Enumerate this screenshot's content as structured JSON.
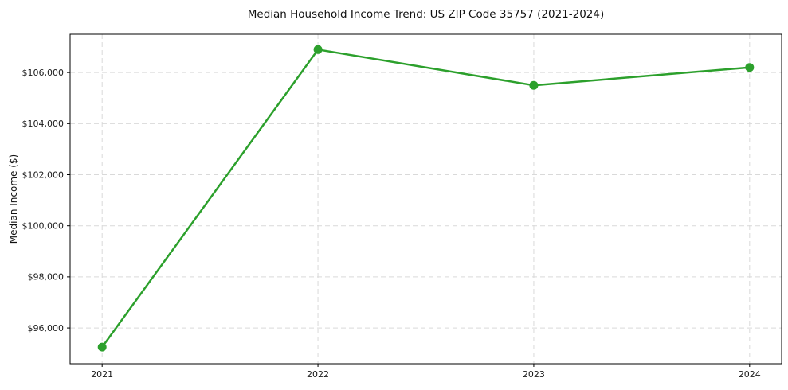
{
  "chart_data": {
    "type": "line",
    "title": "Median Household Income Trend: US ZIP Code 35757 (2021-2024)",
    "xlabel": "",
    "ylabel": "Median Income ($)",
    "x": [
      2021,
      2022,
      2023,
      2024
    ],
    "x_tick_labels": [
      "2021",
      "2022",
      "2023",
      "2024"
    ],
    "series": [
      {
        "name": "Median Household Income",
        "values": [
          95250,
          106900,
          105500,
          106200
        ]
      }
    ],
    "y_ticks": [
      96000,
      98000,
      100000,
      102000,
      104000,
      106000
    ],
    "y_tick_labels": [
      "$96,000",
      "$98,000",
      "$100,000",
      "$102,000",
      "$104,000",
      "$106,000"
    ],
    "ylim": [
      94600,
      107500
    ],
    "grid": true,
    "grid_style": "dashed",
    "legend_position": "none",
    "line_color": "#2ca02c",
    "marker": "circle",
    "marker_diameter": 11,
    "grid_color": "#d9d9d9",
    "axis_color": "#000000",
    "background_color": "#ffffff"
  }
}
